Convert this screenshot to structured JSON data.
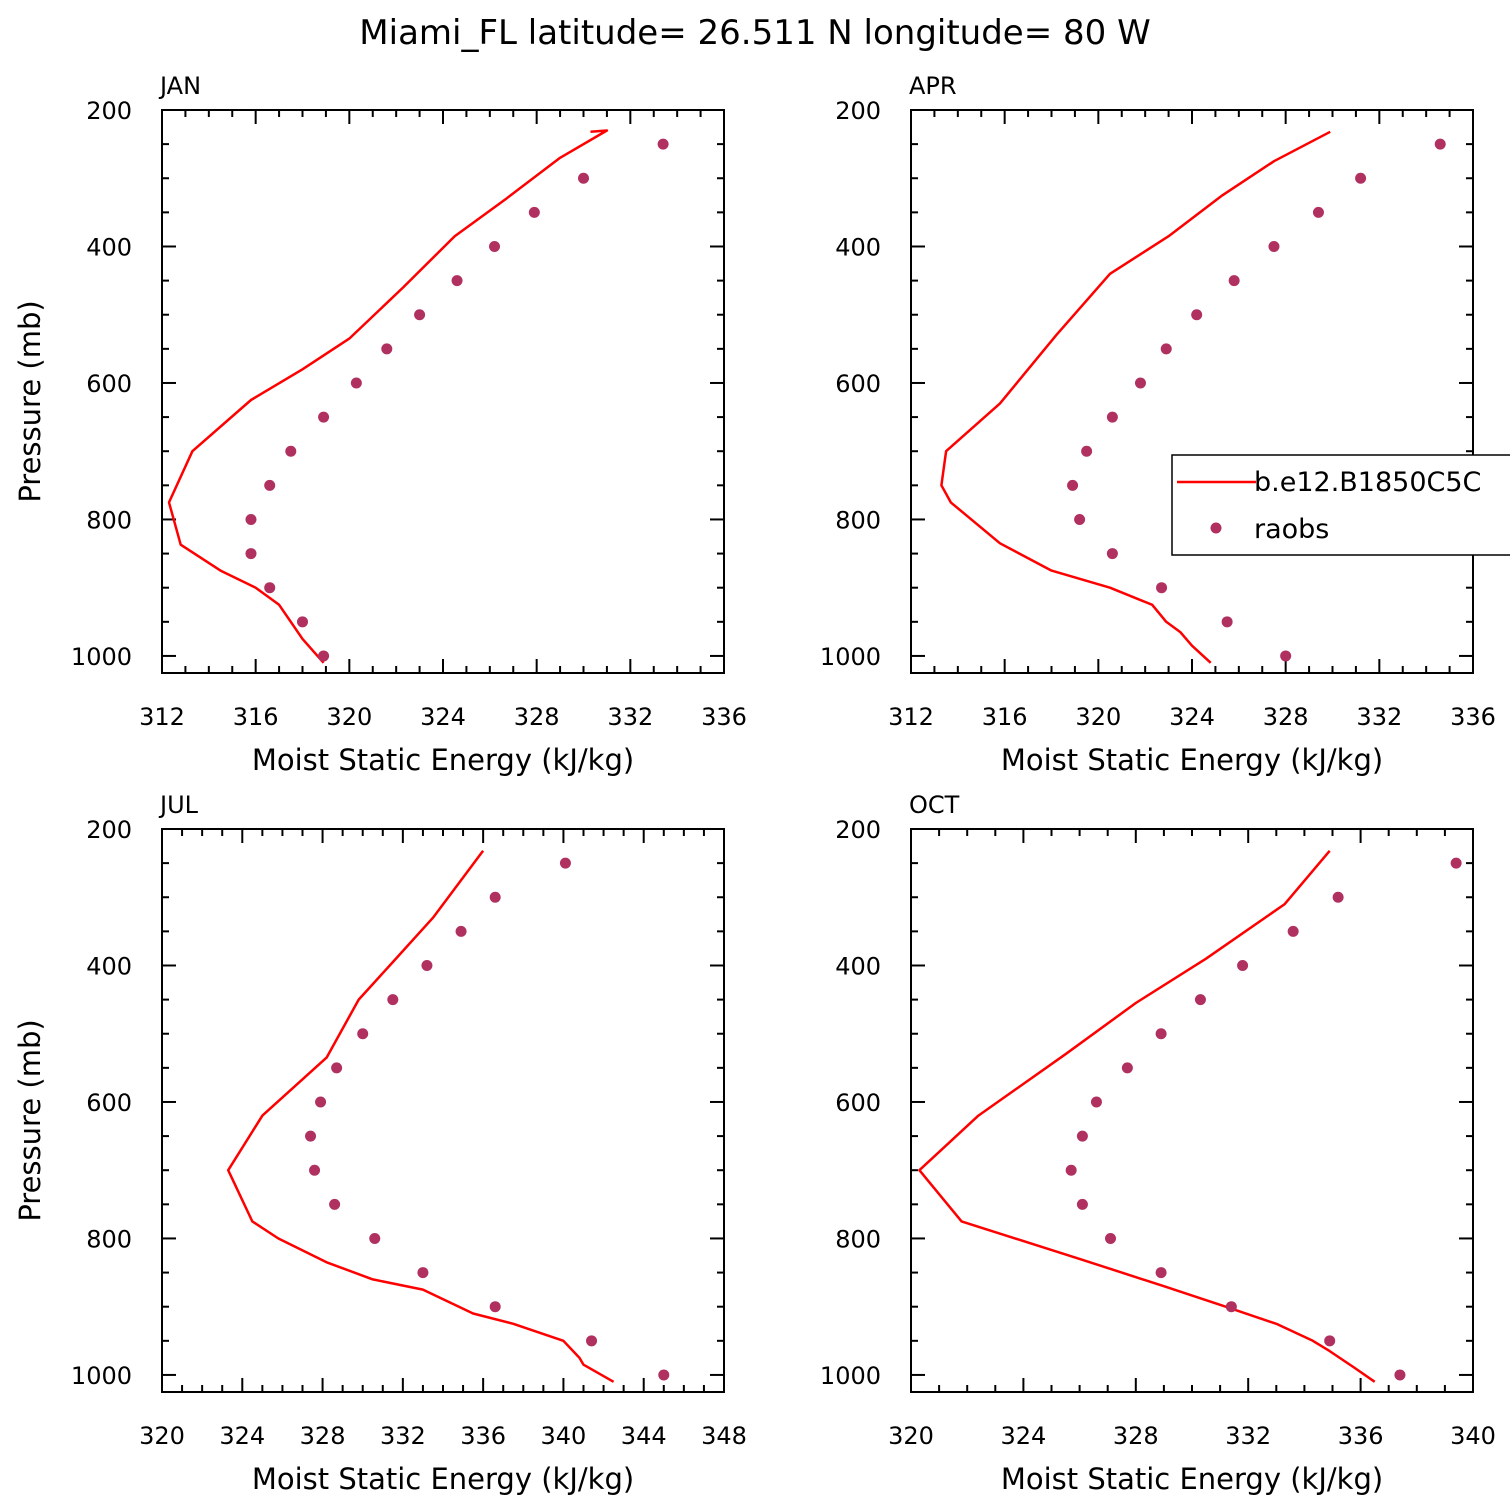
{
  "figure_title": "Miami_FL  latitude= 26.511 N longitude= 80 W",
  "colors": {
    "model": "#ff0000",
    "obs": "#b03060"
  },
  "chart_data": [
    {
      "type": "line",
      "month": "JAN",
      "xlabel": "Moist Static Energy (kJ/kg)",
      "ylabel": "Pressure (mb)",
      "xlim": [
        312,
        336
      ],
      "xticks": [
        "312",
        "316",
        "320",
        "324",
        "328",
        "332",
        "336"
      ],
      "ylim": [
        1025,
        200
      ],
      "yticks": [
        "200",
        "400",
        "600",
        "800",
        "1000"
      ],
      "y_reversed": true,
      "series": [
        {
          "kind": "line",
          "x": [
            318.9,
            318.0,
            317.0,
            316.0,
            314.5,
            312.8,
            312.3,
            313.3,
            315.8,
            318.0,
            320.0,
            322.3,
            324.5,
            326.7,
            329.0,
            331.0,
            330.3
          ],
          "y": [
            1010,
            975,
            925,
            900,
            875,
            837,
            775,
            700,
            625,
            580,
            535,
            460,
            385,
            330,
            270,
            230,
            232
          ]
        },
        {
          "kind": "scatter",
          "x": [
            333.4,
            330.0,
            327.9,
            326.2,
            324.6,
            323.0,
            321.6,
            320.3,
            318.9,
            317.5,
            316.6,
            315.8,
            315.8,
            316.6,
            318.0,
            318.9
          ],
          "y": [
            250,
            300,
            350,
            400,
            450,
            500,
            550,
            600,
            650,
            700,
            750,
            800,
            850,
            900,
            950,
            1000
          ]
        }
      ]
    },
    {
      "type": "line",
      "month": "APR",
      "xlabel": "Moist Static Energy (kJ/kg)",
      "ylabel": "",
      "xlim": [
        312,
        336
      ],
      "xticks": [
        "312",
        "316",
        "320",
        "324",
        "328",
        "332",
        "336"
      ],
      "ylim": [
        1025,
        200
      ],
      "yticks": [
        "200",
        "400",
        "600",
        "800",
        "1000"
      ],
      "y_reversed": true,
      "legend": {
        "entries": [
          "b.e12.B1850C5C",
          "raobs"
        ],
        "placement": "right, overflowing panel edge"
      },
      "series": [
        {
          "name": "b.e12.B1850C5C",
          "kind": "line",
          "x": [
            324.8,
            324.0,
            323.5,
            322.9,
            322.3,
            320.5,
            318.0,
            315.8,
            313.7,
            313.3,
            313.5,
            315.8,
            318.2,
            320.5,
            323.0,
            325.3,
            327.5,
            329.9
          ],
          "y": [
            1010,
            985,
            965,
            950,
            925,
            900,
            875,
            835,
            775,
            750,
            700,
            630,
            530,
            440,
            385,
            325,
            275,
            232
          ]
        },
        {
          "name": "raobs",
          "kind": "scatter",
          "x": [
            334.6,
            331.2,
            329.4,
            327.5,
            325.8,
            324.2,
            322.9,
            321.8,
            320.6,
            319.5,
            318.9,
            319.2,
            320.6,
            322.7,
            325.5,
            328.0
          ],
          "y": [
            250,
            300,
            350,
            400,
            450,
            500,
            550,
            600,
            650,
            700,
            750,
            800,
            850,
            900,
            950,
            1000
          ]
        }
      ]
    },
    {
      "type": "line",
      "month": "JUL",
      "xlabel": "Moist Static Energy (kJ/kg)",
      "ylabel": "Pressure (mb)",
      "xlim": [
        320,
        348
      ],
      "xticks": [
        "320",
        "324",
        "328",
        "332",
        "336",
        "340",
        "344",
        "348"
      ],
      "ylim": [
        1025,
        200
      ],
      "yticks": [
        "200",
        "400",
        "600",
        "800",
        "1000"
      ],
      "y_reversed": true,
      "series": [
        {
          "kind": "line",
          "x": [
            342.5,
            341.0,
            340.8,
            340.0,
            337.5,
            335.5,
            333.0,
            330.5,
            328.2,
            325.8,
            324.5,
            323.3,
            325.0,
            328.2,
            329.8,
            331.5,
            333.5,
            336.0
          ],
          "y": [
            1010,
            985,
            975,
            950,
            925,
            910,
            875,
            860,
            835,
            800,
            775,
            700,
            620,
            535,
            450,
            395,
            330,
            232
          ]
        },
        {
          "kind": "scatter",
          "x": [
            340.1,
            336.6,
            334.9,
            333.2,
            331.5,
            330.0,
            328.7,
            327.9,
            327.4,
            327.6,
            328.6,
            330.6,
            333.0,
            336.6,
            341.4,
            345.0
          ],
          "y": [
            250,
            300,
            350,
            400,
            450,
            500,
            550,
            600,
            650,
            700,
            750,
            800,
            850,
            900,
            950,
            1000
          ]
        }
      ]
    },
    {
      "type": "line",
      "month": "OCT",
      "xlabel": "Moist Static Energy (kJ/kg)",
      "ylabel": "",
      "xlim": [
        320,
        340
      ],
      "xticks": [
        "320",
        "324",
        "328",
        "332",
        "336",
        "340"
      ],
      "ylim": [
        1025,
        200
      ],
      "yticks": [
        "200",
        "400",
        "600",
        "800",
        "1000"
      ],
      "y_reversed": true,
      "series": [
        {
          "kind": "line",
          "x": [
            336.5,
            335.8,
            334.9,
            334.3,
            333.0,
            331.2,
            329.0,
            326.0,
            321.8,
            320.3,
            322.4,
            325.5,
            328.0,
            330.5,
            333.3,
            334.9
          ],
          "y": [
            1010,
            990,
            965,
            950,
            925,
            900,
            870,
            830,
            775,
            700,
            620,
            530,
            455,
            390,
            310,
            232
          ]
        },
        {
          "kind": "scatter",
          "x": [
            339.4,
            335.2,
            333.6,
            331.8,
            330.3,
            328.9,
            327.7,
            326.6,
            326.1,
            325.7,
            326.1,
            327.1,
            328.9,
            331.4,
            334.9,
            337.4
          ],
          "y": [
            250,
            300,
            350,
            400,
            450,
            500,
            550,
            600,
            650,
            700,
            750,
            800,
            850,
            900,
            950,
            1000
          ]
        }
      ]
    }
  ]
}
